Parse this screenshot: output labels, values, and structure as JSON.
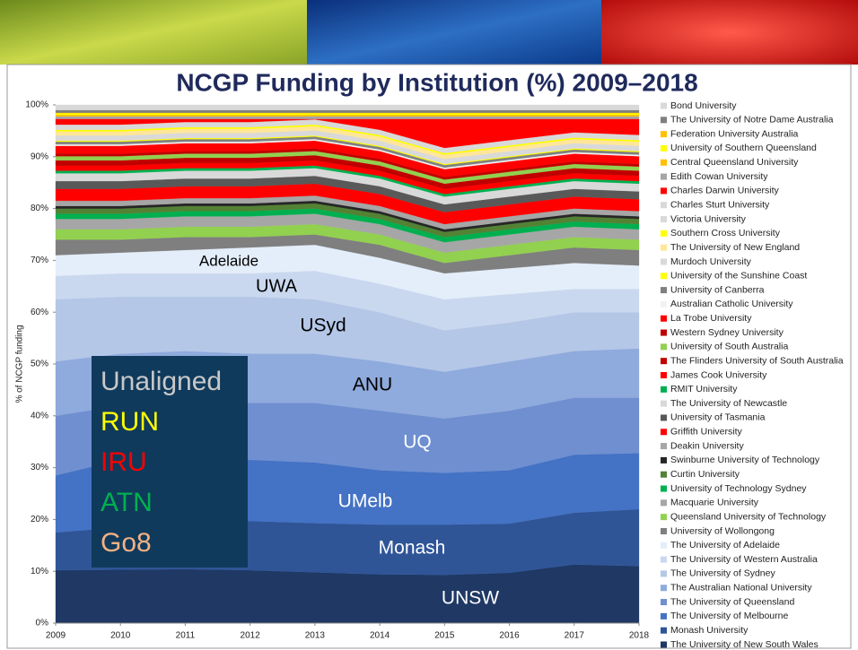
{
  "chart_data": {
    "type": "stacked_area",
    "title": "NCGP Funding by Institution (%) 2009–2018",
    "y_label": "% of NCGP funding",
    "x": [
      2009,
      2010,
      2011,
      2012,
      2013,
      2014,
      2015,
      2016,
      2017,
      2018
    ],
    "xlim": [
      2009,
      2018
    ],
    "xticks": [
      2009,
      2010,
      2011,
      2012,
      2013,
      2014,
      2015,
      2016,
      2017,
      2018
    ],
    "ylim": [
      0,
      100
    ],
    "yticks": [
      {
        "value": 0,
        "label": "0%"
      },
      {
        "value": 10,
        "label": "10%"
      },
      {
        "value": 20,
        "label": "20%"
      },
      {
        "value": 30,
        "label": "30%"
      },
      {
        "value": 40,
        "label": "40%"
      },
      {
        "value": 50,
        "label": "50%"
      },
      {
        "value": 60,
        "label": "60%"
      },
      {
        "value": 70,
        "label": "70%"
      },
      {
        "value": 80,
        "label": "80%"
      },
      {
        "value": 90,
        "label": "90%"
      },
      {
        "value": 100,
        "label": "100%"
      }
    ],
    "series": [
      {
        "name": "The University of New South Wales",
        "color": "#1f3864",
        "values": [
          10.2,
          10.3,
          10.4,
          10.2,
          9.8,
          9.4,
          9.3,
          9.7,
          11.3,
          11.0
        ]
      },
      {
        "name": "Monash University",
        "color": "#2f5597",
        "values": [
          7.3,
          8.2,
          9.3,
          9.5,
          9.5,
          9.6,
          9.7,
          9.5,
          10.0,
          11.0
        ]
      },
      {
        "name": "The University of Melbourne",
        "color": "#4472c4",
        "values": [
          11.0,
          13.0,
          12.3,
          11.8,
          11.7,
          10.5,
          10.0,
          10.3,
          11.2,
          10.8
        ]
      },
      {
        "name": "The University of Queensland",
        "color": "#6f8fd0",
        "values": [
          11.5,
          10.5,
          11.0,
          11.0,
          11.5,
          11.5,
          10.5,
          11.5,
          11.0,
          10.7
        ]
      },
      {
        "name": "The Australian National University",
        "color": "#8faadc",
        "values": [
          10.5,
          10.0,
          9.5,
          9.5,
          9.5,
          9.5,
          9.0,
          9.5,
          9.0,
          9.5
        ]
      },
      {
        "name": "The University of Sydney",
        "color": "#b4c7e7",
        "values": [
          12.0,
          11.0,
          10.5,
          11.0,
          10.5,
          9.5,
          8.0,
          7.5,
          7.5,
          7.0
        ]
      },
      {
        "name": "The University of Western Australia",
        "color": "#cad8ef",
        "values": [
          4.5,
          4.5,
          4.5,
          4.5,
          5.5,
          5.5,
          6.0,
          5.5,
          4.5,
          4.5
        ]
      },
      {
        "name": "The University of Adelaide",
        "color": "#e4eefa",
        "values": [
          4.0,
          4.0,
          4.5,
          5.0,
          5.0,
          5.0,
          5.0,
          5.0,
          5.0,
          4.5
        ]
      },
      {
        "name": "University of Wollongong",
        "color": "#7f7f7f",
        "values": [
          3.0,
          2.5,
          2.5,
          2.0,
          2.0,
          2.5,
          2.0,
          2.5,
          3.0,
          3.0
        ]
      },
      {
        "name": "Queensland University of Technology",
        "color": "#92d050",
        "values": [
          2.0,
          2.0,
          2.0,
          2.0,
          2.0,
          2.0,
          2.0,
          2.0,
          2.0,
          2.0
        ]
      },
      {
        "name": "Macquarie University",
        "color": "#a6a6a6",
        "values": [
          2.0,
          2.0,
          2.0,
          2.0,
          2.0,
          2.0,
          2.0,
          2.0,
          2.0,
          2.0
        ]
      },
      {
        "name": "University of Technology Sydney",
        "color": "#00b050",
        "values": [
          1.0,
          1.0,
          1.0,
          1.0,
          1.0,
          1.0,
          1.0,
          1.0,
          1.0,
          1.0
        ]
      },
      {
        "name": "Curtin University",
        "color": "#548235",
        "values": [
          1.0,
          1.0,
          1.0,
          1.0,
          1.0,
          1.0,
          1.0,
          1.0,
          1.0,
          1.0
        ]
      },
      {
        "name": "Swinburne University of Technology",
        "color": "#262626",
        "values": [
          0.5,
          0.5,
          0.5,
          0.5,
          0.5,
          0.5,
          0.5,
          0.5,
          0.5,
          0.5
        ]
      },
      {
        "name": "Deakin University",
        "color": "#a6a6a6",
        "values": [
          1.0,
          1.0,
          1.0,
          1.0,
          1.0,
          1.0,
          1.0,
          1.0,
          1.0,
          1.0
        ]
      },
      {
        "name": "Griffith University",
        "color": "#ff0000",
        "values": [
          2.3,
          2.3,
          2.3,
          2.3,
          2.3,
          2.3,
          2.3,
          2.3,
          2.3,
          2.3
        ]
      },
      {
        "name": "University of Tasmania",
        "color": "#595959",
        "values": [
          1.5,
          1.5,
          1.5,
          1.5,
          1.5,
          1.5,
          1.5,
          1.5,
          1.5,
          1.5
        ]
      },
      {
        "name": "The University of Newcastle",
        "color": "#d9d9d9",
        "values": [
          1.5,
          1.5,
          1.5,
          1.5,
          1.5,
          1.5,
          1.5,
          1.5,
          1.5,
          1.5
        ]
      },
      {
        "name": "RMIT University",
        "color": "#00b050",
        "values": [
          0.5,
          0.5,
          0.5,
          0.5,
          0.5,
          0.5,
          0.5,
          0.5,
          0.5,
          0.5
        ]
      },
      {
        "name": "James Cook University",
        "color": "#ff0000",
        "values": [
          1.0,
          1.0,
          1.0,
          1.0,
          1.0,
          1.0,
          1.0,
          1.0,
          1.0,
          1.0
        ]
      },
      {
        "name": "The Flinders University of South Australia",
        "color": "#c00000",
        "values": [
          1.0,
          1.0,
          1.0,
          1.0,
          1.0,
          1.0,
          1.0,
          1.0,
          1.0,
          1.0
        ]
      },
      {
        "name": "University of South Australia",
        "color": "#92d050",
        "values": [
          0.8,
          0.8,
          0.8,
          0.8,
          0.8,
          0.8,
          0.8,
          0.8,
          0.8,
          0.8
        ]
      },
      {
        "name": "Western Sydney University",
        "color": "#c00000",
        "values": [
          0.5,
          0.5,
          0.5,
          0.5,
          0.5,
          0.5,
          0.5,
          0.5,
          0.5,
          0.5
        ]
      },
      {
        "name": "La Trobe University",
        "color": "#ff0000",
        "values": [
          1.5,
          1.5,
          1.5,
          1.5,
          1.5,
          1.5,
          1.5,
          1.5,
          1.5,
          1.5
        ]
      },
      {
        "name": "Australian Catholic University",
        "color": "#f2f2f2",
        "values": [
          0.3,
          0.3,
          0.3,
          0.3,
          0.3,
          0.3,
          0.3,
          0.3,
          0.3,
          0.3
        ]
      },
      {
        "name": "University of Canberra",
        "color": "#808080",
        "values": [
          0.5,
          0.5,
          0.5,
          0.5,
          0.5,
          0.5,
          0.5,
          0.5,
          0.5,
          0.5
        ]
      },
      {
        "name": "University of the Sunshine Coast",
        "color": "#ffff00",
        "values": [
          0.2,
          0.2,
          0.2,
          0.2,
          0.2,
          0.2,
          0.2,
          0.2,
          0.2,
          0.2
        ]
      },
      {
        "name": "Murdoch University",
        "color": "#d9d9d9",
        "values": [
          1.0,
          1.0,
          1.0,
          1.0,
          1.0,
          1.0,
          1.0,
          1.0,
          1.0,
          1.0
        ]
      },
      {
        "name": "The University of New England",
        "color": "#ffe699",
        "values": [
          0.8,
          0.8,
          0.8,
          0.8,
          0.8,
          0.8,
          0.8,
          0.8,
          0.8,
          0.8
        ]
      },
      {
        "name": "Southern Cross University",
        "color": "#ffff00",
        "values": [
          0.3,
          0.3,
          0.3,
          0.3,
          0.3,
          0.3,
          0.3,
          0.3,
          0.3,
          0.3
        ]
      },
      {
        "name": "Victoria University",
        "color": "#d9d9d9",
        "values": [
          0.3,
          0.3,
          0.3,
          0.3,
          0.3,
          0.3,
          0.3,
          0.3,
          0.3,
          0.3
        ]
      },
      {
        "name": "Charles Sturt University",
        "color": "#d9d9d9",
        "values": [
          0.7,
          0.7,
          0.7,
          0.7,
          0.7,
          0.7,
          0.7,
          0.7,
          0.7,
          0.7
        ]
      },
      {
        "name": "Charles Darwin University",
        "color": "#ff0000",
        "values": [
          1.1,
          1.1,
          0.6,
          0.6,
          0.1,
          2.1,
          5.6,
          4.1,
          2.6,
          3.1
        ]
      },
      {
        "name": "Edith Cowan University",
        "color": "#a6a6a6",
        "values": [
          0.5,
          0.5,
          0.5,
          0.5,
          0.5,
          0.5,
          0.5,
          0.5,
          0.5,
          0.5
        ]
      },
      {
        "name": "Central Queensland University",
        "color": "#ffc000",
        "values": [
          0.3,
          0.3,
          0.3,
          0.3,
          0.3,
          0.3,
          0.3,
          0.3,
          0.3,
          0.3
        ]
      },
      {
        "name": "University of Southern Queensland",
        "color": "#ffff00",
        "values": [
          0.3,
          0.3,
          0.3,
          0.3,
          0.3,
          0.3,
          0.3,
          0.3,
          0.3,
          0.3
        ]
      },
      {
        "name": "Federation University Australia",
        "color": "#ffc000",
        "values": [
          0.1,
          0.1,
          0.1,
          0.1,
          0.1,
          0.1,
          0.1,
          0.1,
          0.1,
          0.1
        ]
      },
      {
        "name": "The University of Notre Dame Australia",
        "color": "#7f7f7f",
        "values": [
          0.5,
          0.5,
          0.5,
          0.5,
          0.5,
          0.5,
          0.5,
          0.5,
          0.5,
          0.5
        ]
      },
      {
        "name": "Bond University",
        "color": "#d9d9d9",
        "values": [
          1.0,
          1.0,
          1.0,
          1.0,
          1.0,
          1.0,
          1.0,
          1.0,
          1.0,
          1.0
        ]
      }
    ],
    "annotations": [
      "Adelaide",
      "UWA",
      "USyd",
      "ANU",
      "UQ",
      "UMelb",
      "Monash",
      "UNSW"
    ],
    "groups": [
      {
        "label": "Unaligned",
        "color": "#c8c8c8"
      },
      {
        "label": "RUN",
        "color": "#ffff00"
      },
      {
        "label": "IRU",
        "color": "#ff0000"
      },
      {
        "label": "ATN",
        "color": "#00b050"
      },
      {
        "label": "Go8",
        "color": "#f4b183"
      }
    ]
  }
}
